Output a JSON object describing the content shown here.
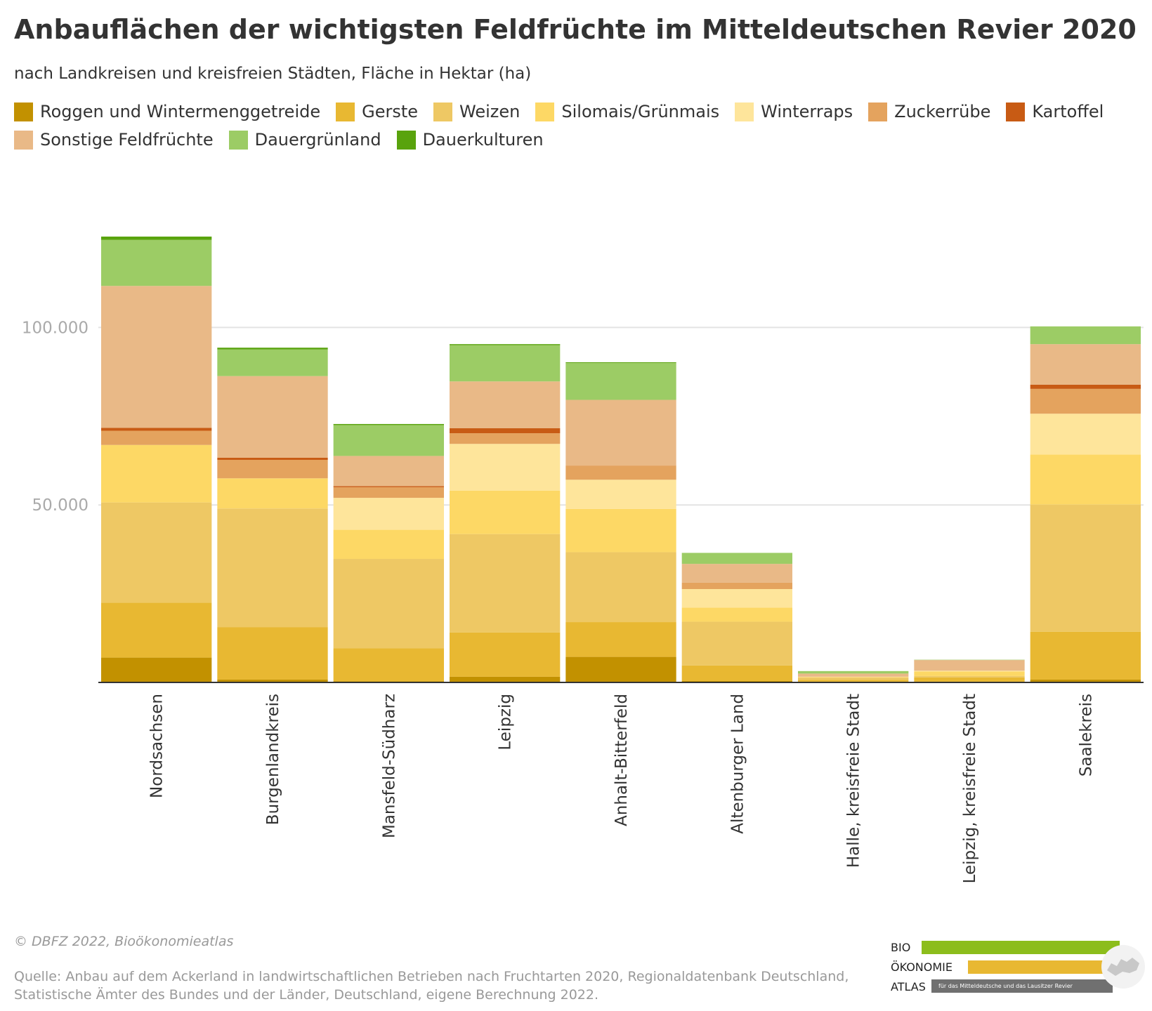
{
  "title": "Anbauflächen der wichtigsten Feldfrüchte im Mitteldeutschen Revier 2020",
  "subtitle": "nach Landkreisen und kreisfreien Städten, Fläche in Hektar (ha)",
  "footer": {
    "copyright": "© DBFZ 2022, Bioökonomieatlas",
    "source": "Quelle: Anbau auf dem Ackerland in landwirtschaftlichen Betrieben nach Fruchtarten 2020, Regionaldatenbank Deutschland, Statistische Ämter des Bundes und der Länder, Deutschland, eigene Berechnung 2022."
  },
  "logo": {
    "line1": "BIO",
    "line2": "ÖKONOMIE",
    "line3": "ATLAS",
    "tagline": "für das Mitteldeutsche und das Lausitzer Revier",
    "colors": {
      "green": "#8cbd1c",
      "yellow": "#e8b832",
      "grey": "#707070"
    }
  },
  "chart_data": {
    "type": "bar",
    "stacked": true,
    "title": "Anbauflächen der wichtigsten Feldfrüchte im Mitteldeutschen Revier 2020",
    "subtitle": "nach Landkreisen und kreisfreien Städten, Fläche in Hektar (ha)",
    "ylim": [
      0,
      125000
    ],
    "yticks": [
      50000,
      100000
    ],
    "ytick_labels": [
      "50.000",
      "100.000"
    ],
    "grid": true,
    "legend_position": "top",
    "categories": [
      "Nordsachsen",
      "Burgenlandkreis",
      "Mansfeld-Südharz",
      "Leipzig",
      "Anhalt-Bitterfeld",
      "Altenburger Land",
      "Halle, kreisfreie Stadt",
      "Leipzig, kreisfreie Stadt",
      "Saalekreis"
    ],
    "series": [
      {
        "name": "Roggen und Wintermenggetreide",
        "color": "#c29100",
        "values": [
          7000,
          800,
          300,
          1600,
          7200,
          400,
          100,
          200,
          800
        ]
      },
      {
        "name": "Gerste",
        "color": "#e8b832",
        "values": [
          15500,
          14800,
          9300,
          12500,
          9800,
          4400,
          600,
          1200,
          13500
        ]
      },
      {
        "name": "Weizen",
        "color": "#eec864",
        "values": [
          28200,
          33400,
          25200,
          27700,
          19700,
          12300,
          700,
          400,
          35800
        ]
      },
      {
        "name": "Silomais/Grünmais",
        "color": "#fdd865",
        "values": [
          16200,
          8500,
          8200,
          12200,
          12200,
          4000,
          100,
          1300,
          14100
        ]
      },
      {
        "name": "Winterraps",
        "color": "#fee59b",
        "values": [
          0,
          0,
          9000,
          13200,
          8200,
          5200,
          100,
          200,
          11500
        ]
      },
      {
        "name": "Zuckerrübe",
        "color": "#e4a35e",
        "values": [
          4000,
          5200,
          3000,
          3000,
          4000,
          1800,
          0,
          0,
          7000
        ]
      },
      {
        "name": "Kartoffel",
        "color": "#c85b14",
        "values": [
          800,
          600,
          300,
          1400,
          0,
          0,
          0,
          0,
          1200
        ]
      },
      {
        "name": "Sonstige Feldfrüchte",
        "color": "#e9b987",
        "values": [
          40000,
          23000,
          8500,
          13200,
          18500,
          5300,
          900,
          3000,
          11400
        ]
      },
      {
        "name": "Dauergrünland",
        "color": "#9ccc65",
        "values": [
          13000,
          7500,
          8700,
          10200,
          10400,
          3100,
          700,
          100,
          5000
        ]
      },
      {
        "name": "Dauerkulturen",
        "color": "#59a30d",
        "values": [
          900,
          500,
          300,
          300,
          200,
          0,
          0,
          0,
          0
        ]
      }
    ]
  }
}
